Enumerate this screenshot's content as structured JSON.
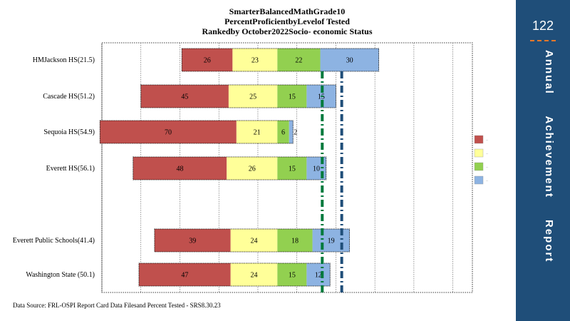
{
  "sidebar": {
    "page_number": "122",
    "title": "Annual Achievement Report",
    "background": "#1f4e79",
    "accent": "#e8782b"
  },
  "source_note": "Data Source: FRL-OSPI Report Card Data Filesand Percent Tested - SRS8.30.23",
  "chart_data": {
    "type": "bar",
    "orientation": "horizontal",
    "stacked": true,
    "title": [
      "SmarterBalancedMathGrade10",
      "PercentProficientbyLevelof Tested",
      "Rankedby October2022Socio- economic Status"
    ],
    "categories": [
      "HMJackson HS(21.5)",
      "Cascade HS(51.2)",
      "Sequoia HS(54.9)",
      "Everett HS(56.1)",
      "Everett Public Schools(41.4)",
      "Washington State (50.1)"
    ],
    "category_gap_after_index": 3,
    "series": [
      {
        "values": [
          26,
          45,
          70,
          48,
          39,
          47
        ],
        "color": "#c0504d",
        "side": "below"
      },
      {
        "values": [
          23,
          25,
          21,
          26,
          24,
          24
        ],
        "color": "#ffff99",
        "side": "below"
      },
      {
        "values": [
          22,
          15,
          6,
          15,
          18,
          15
        ],
        "color": "#92d050",
        "side": "above"
      },
      {
        "values": [
          30,
          15,
          2,
          10,
          19,
          12
        ],
        "color": "#8db3e2",
        "side": "above"
      }
    ],
    "value_labels": [
      [
        "26",
        "23",
        "22",
        "30"
      ],
      [
        "45",
        "25",
        "15",
        "15"
      ],
      [
        "70",
        "21",
        "6",
        "2"
      ],
      [
        "48",
        "26",
        "15",
        "10"
      ],
      [
        "39",
        "24",
        "18",
        "19"
      ],
      [
        "47",
        "24",
        "15",
        "12"
      ]
    ],
    "xlim": [
      -90,
      100
    ],
    "gridlines": [
      -90,
      -70,
      -50,
      -30,
      -10,
      10,
      30,
      50,
      70,
      90
    ],
    "grid": true,
    "reference_lines": [
      {
        "value": 23,
        "color": "#007a3d",
        "style": "dash-dot"
      },
      {
        "value": 33,
        "color": "#1f4e79",
        "style": "dash-dot"
      }
    ],
    "legend": {
      "position": "right",
      "entries": [
        {
          "label": "...",
          "color": "#c0504d"
        },
        {
          "label": "...",
          "color": "#ffff99"
        },
        {
          "label": "...",
          "color": "#92d050"
        },
        {
          "label": "...",
          "color": "#8db3e2"
        }
      ]
    }
  }
}
